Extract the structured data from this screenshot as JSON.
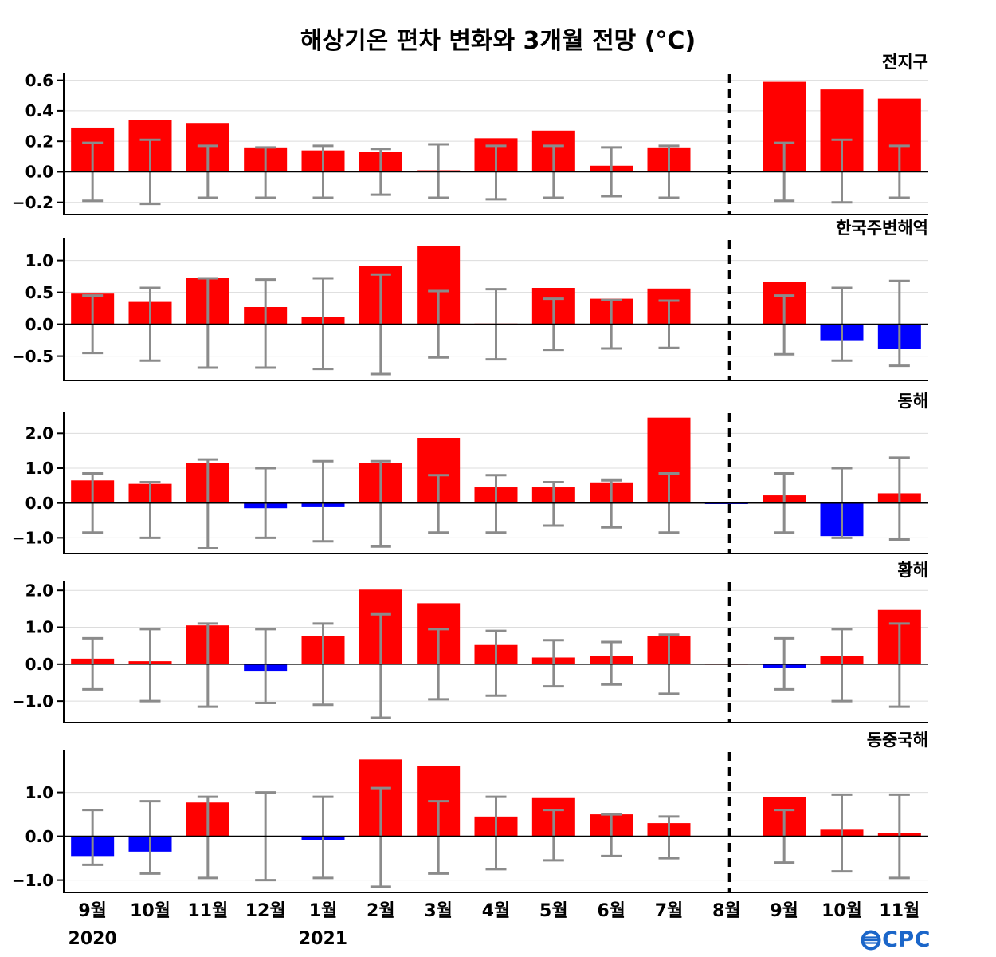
{
  "title": "해상기온 편차 변화와 3개월 전망 (°C)",
  "x_labels": [
    "9월",
    "10월",
    "11월",
    "12월",
    "1월",
    "2월",
    "3월",
    "4월",
    "5월",
    "6월",
    "7월",
    "8월",
    "9월",
    "10월",
    "11월"
  ],
  "year_labels": [
    {
      "text": "2020",
      "category_index": 0
    },
    {
      "text": "2021",
      "category_index": 4
    }
  ],
  "forecast_divider_position": 11.55,
  "colors": {
    "positive_bar": "#ff0000",
    "negative_bar": "#0000ff",
    "error_bar": "#8b8b8b",
    "zero_line": "#000000",
    "gridline": "#dcdcdc",
    "divider": "#000000",
    "logo_blue": "#1b66c9"
  },
  "logo": {
    "full": "OCPC",
    "text_rest": "CPC"
  },
  "chart_data": [
    {
      "type": "bar",
      "region": "전지구",
      "categories": [
        "9월",
        "10월",
        "11월",
        "12월",
        "1월",
        "2월",
        "3월",
        "4월",
        "5월",
        "6월",
        "7월",
        "8월",
        "9월",
        "10월",
        "11월"
      ],
      "values": [
        0.29,
        0.34,
        0.32,
        0.16,
        0.14,
        0.13,
        0.01,
        0.22,
        0.27,
        0.04,
        0.16,
        0.005,
        0.59,
        0.54,
        0.48
      ],
      "error_bars": [
        [
          -0.19,
          0.19
        ],
        [
          -0.21,
          0.21
        ],
        [
          -0.17,
          0.17
        ],
        [
          -0.17,
          0.16
        ],
        [
          -0.17,
          0.17
        ],
        [
          -0.15,
          0.15
        ],
        [
          -0.17,
          0.18
        ],
        [
          -0.18,
          0.17
        ],
        [
          -0.17,
          0.17
        ],
        [
          -0.16,
          0.16
        ],
        [
          -0.17,
          0.17
        ],
        null,
        [
          -0.19,
          0.19
        ],
        [
          -0.2,
          0.21
        ],
        [
          -0.17,
          0.17
        ]
      ],
      "yticks": [
        -0.2,
        0.0,
        0.2,
        0.4,
        0.6
      ],
      "ylim": [
        -0.28,
        0.64
      ]
    },
    {
      "type": "bar",
      "region": "한국주변해역",
      "categories": [
        "9월",
        "10월",
        "11월",
        "12월",
        "1월",
        "2월",
        "3월",
        "4월",
        "5월",
        "6월",
        "7월",
        "8월",
        "9월",
        "10월",
        "11월"
      ],
      "values": [
        0.48,
        0.35,
        0.73,
        0.27,
        0.12,
        0.92,
        1.22,
        0.01,
        0.57,
        0.4,
        0.56,
        0.005,
        0.66,
        -0.25,
        -0.38
      ],
      "error_bars": [
        [
          -0.45,
          0.45
        ],
        [
          -0.57,
          0.57
        ],
        [
          -0.68,
          0.72
        ],
        [
          -0.68,
          0.7
        ],
        [
          -0.7,
          0.72
        ],
        [
          -0.78,
          0.78
        ],
        [
          -0.52,
          0.52
        ],
        [
          -0.55,
          0.55
        ],
        [
          -0.4,
          0.4
        ],
        [
          -0.38,
          0.38
        ],
        [
          -0.37,
          0.37
        ],
        null,
        [
          -0.47,
          0.45
        ],
        [
          -0.57,
          0.57
        ],
        [
          -0.65,
          0.68
        ]
      ],
      "yticks": [
        -0.5,
        0.0,
        0.5,
        1.0
      ],
      "ylim": [
        -0.88,
        1.32
      ]
    },
    {
      "type": "bar",
      "region": "동해",
      "categories": [
        "9월",
        "10월",
        "11월",
        "12월",
        "1월",
        "2월",
        "3월",
        "4월",
        "5월",
        "6월",
        "7월",
        "8월",
        "9월",
        "10월",
        "11월"
      ],
      "values": [
        0.65,
        0.55,
        1.15,
        -0.15,
        -0.12,
        1.15,
        1.87,
        0.45,
        0.45,
        0.57,
        2.45,
        -0.03,
        0.22,
        -0.95,
        0.28
      ],
      "error_bars": [
        [
          -0.85,
          0.85
        ],
        [
          -1.0,
          0.6
        ],
        [
          -1.3,
          1.25
        ],
        [
          -1.0,
          1.0
        ],
        [
          -1.1,
          1.2
        ],
        [
          -1.25,
          1.2
        ],
        [
          -0.85,
          0.8
        ],
        [
          -0.85,
          0.8
        ],
        [
          -0.65,
          0.6
        ],
        [
          -0.7,
          0.65
        ],
        [
          -0.85,
          0.85
        ],
        null,
        [
          -0.85,
          0.85
        ],
        [
          -1.0,
          1.0
        ],
        [
          -1.05,
          1.3
        ]
      ],
      "yticks": [
        -1.0,
        0.0,
        1.0,
        2.0
      ],
      "ylim": [
        -1.45,
        2.58
      ]
    },
    {
      "type": "bar",
      "region": "황해",
      "categories": [
        "9월",
        "10월",
        "11월",
        "12월",
        "1월",
        "2월",
        "3월",
        "4월",
        "5월",
        "6월",
        "7월",
        "8월",
        "9월",
        "10월",
        "11월"
      ],
      "values": [
        0.15,
        0.08,
        1.05,
        -0.2,
        0.77,
        2.02,
        1.65,
        0.52,
        0.18,
        0.22,
        0.77,
        0.005,
        -0.1,
        0.22,
        1.47
      ],
      "error_bars": [
        [
          -0.68,
          0.7
        ],
        [
          -1.0,
          0.95
        ],
        [
          -1.15,
          1.1
        ],
        [
          -1.05,
          0.95
        ],
        [
          -1.1,
          1.1
        ],
        [
          -1.45,
          1.35
        ],
        [
          -0.95,
          0.95
        ],
        [
          -0.85,
          0.9
        ],
        [
          -0.6,
          0.65
        ],
        [
          -0.55,
          0.6
        ],
        [
          -0.8,
          0.8
        ],
        null,
        [
          -0.68,
          0.7
        ],
        [
          -1.0,
          0.95
        ],
        [
          -1.15,
          1.1
        ]
      ],
      "yticks": [
        -1.0,
        0.0,
        1.0,
        2.0
      ],
      "ylim": [
        -1.58,
        2.22
      ]
    },
    {
      "type": "bar",
      "region": "동중국해",
      "categories": [
        "9월",
        "10월",
        "11월",
        "12월",
        "1월",
        "2월",
        "3월",
        "4월",
        "5월",
        "6월",
        "7월",
        "8월",
        "9월",
        "10월",
        "11월"
      ],
      "values": [
        -0.45,
        -0.35,
        0.77,
        0.005,
        -0.08,
        1.75,
        1.6,
        0.45,
        0.87,
        0.5,
        0.3,
        0.005,
        0.9,
        0.15,
        0.08
      ],
      "error_bars": [
        [
          -0.65,
          0.6
        ],
        [
          -0.85,
          0.8
        ],
        [
          -0.95,
          0.9
        ],
        [
          -1.0,
          1.0
        ],
        [
          -0.95,
          0.9
        ],
        [
          -1.15,
          1.1
        ],
        [
          -0.85,
          0.8
        ],
        [
          -0.75,
          0.9
        ],
        [
          -0.55,
          0.6
        ],
        [
          -0.45,
          0.5
        ],
        [
          -0.5,
          0.45
        ],
        null,
        [
          -0.6,
          0.6
        ],
        [
          -0.8,
          0.95
        ],
        [
          -0.95,
          0.95
        ]
      ],
      "yticks": [
        -1.0,
        0.0,
        1.0
      ],
      "ylim": [
        -1.28,
        1.92
      ]
    }
  ]
}
